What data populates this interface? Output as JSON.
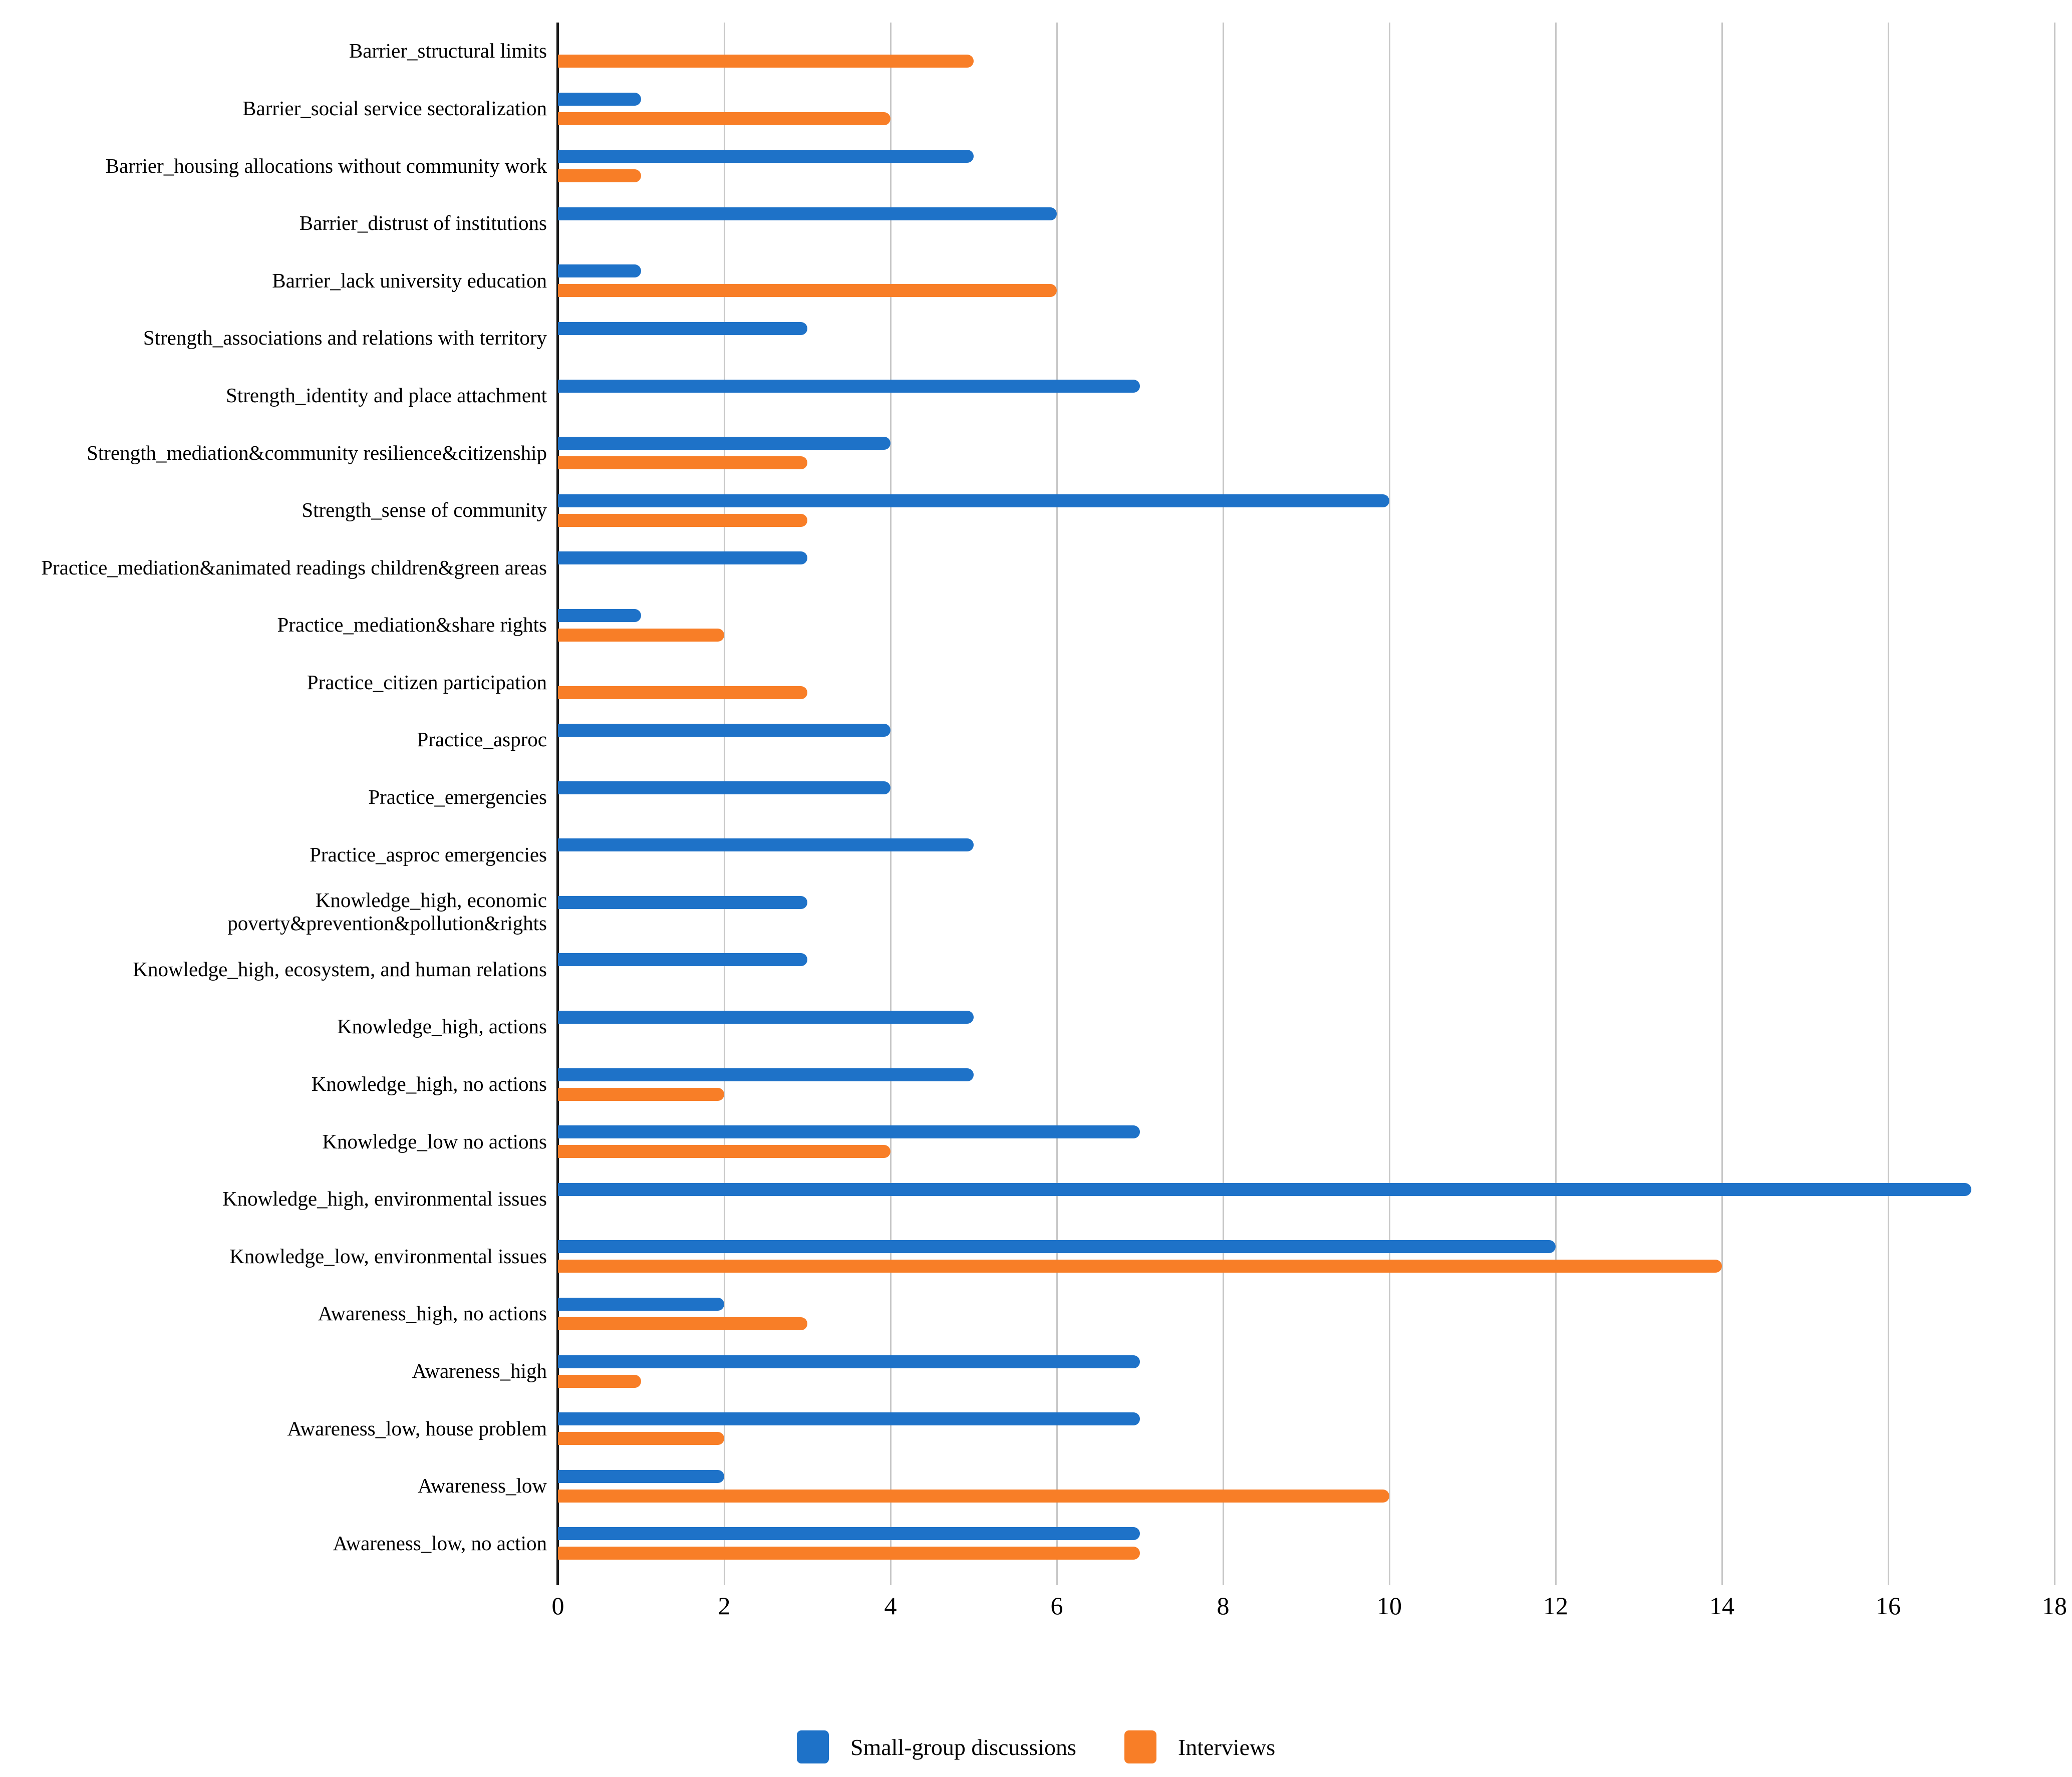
{
  "chart_data": {
    "type": "bar",
    "orientation": "horizontal",
    "title": "",
    "xlabel": "",
    "ylabel": "",
    "xlim": [
      0,
      18
    ],
    "xticks": [
      0,
      2,
      4,
      6,
      8,
      10,
      12,
      14,
      16,
      18
    ],
    "grid": "vertical-gridlines-on",
    "legend_position": "bottom-center",
    "categories": [
      "Barrier_structural limits",
      "Barrier_social service sectoralization",
      "Barrier_housing allocations without community work",
      "Barrier_distrust of institutions",
      "Barrier_lack university education",
      "Strength_associations and relations with territory",
      "Strength_identity and place attachment",
      "Strength_mediation&community resilience&citizenship",
      "Strength_sense of community",
      "Practice_mediation&animated readings children&green areas",
      "Practice_mediation&share rights",
      "Practice_citizen participation",
      "Practice_asproc",
      "Practice_emergencies",
      "Practice_asproc emergencies",
      "Knowledge_high, economic poverty&prevention&pollution&rights",
      "Knowledge_high, ecosystem, and human relations",
      "Knowledge_high, actions",
      "Knowledge_high, no actions",
      "Knowledge_low no actions",
      "Knowledge_high, environmental issues",
      "Knowledge_low, environmental issues",
      "Awareness_high, no actions",
      "Awareness_high",
      "Awareness_low, house problem",
      "Awareness_low",
      "Awareness_low, no action"
    ],
    "series": [
      {
        "name": "Small-group discussions",
        "color": "#1E72C8",
        "values": [
          0,
          1,
          5,
          6,
          1,
          3,
          7,
          4,
          10,
          3,
          1,
          0,
          4,
          4,
          5,
          3,
          3,
          5,
          5,
          7,
          17,
          12,
          2,
          7,
          7,
          2,
          7
        ]
      },
      {
        "name": "Interviews",
        "color": "#F87E27",
        "values": [
          5,
          4,
          1,
          0,
          6,
          0,
          0,
          3,
          3,
          0,
          2,
          3,
          0,
          0,
          0,
          0,
          0,
          0,
          2,
          4,
          0,
          14,
          3,
          1,
          2,
          10,
          7
        ]
      }
    ]
  },
  "legend": {
    "items": [
      {
        "label": "Small-group discussions",
        "color": "#1E72C8"
      },
      {
        "label": "Interviews",
        "color": "#F87E27"
      }
    ]
  },
  "style_colors": {
    "gridline": "#c7c7c7",
    "axis": "#1a1a1a",
    "background": "#ffffff"
  }
}
